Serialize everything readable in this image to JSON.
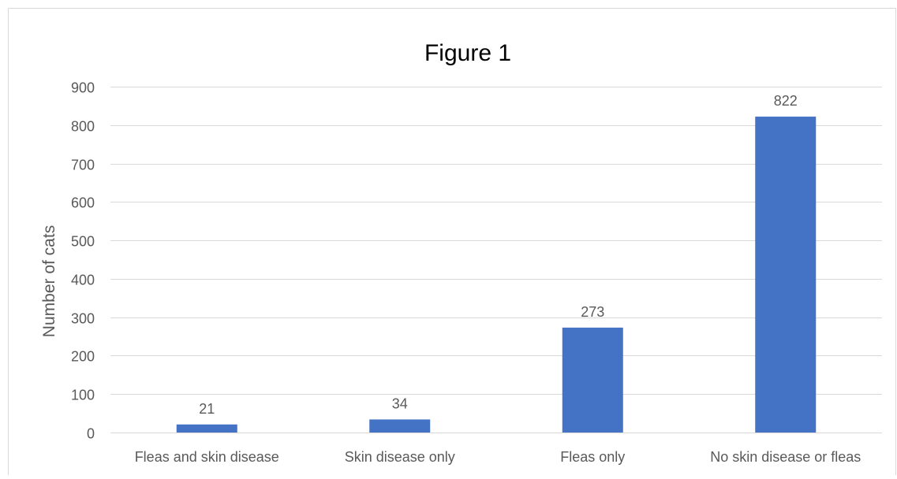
{
  "chart_data": {
    "type": "bar",
    "title": "Figure 1",
    "xlabel": "",
    "ylabel": "Number of cats",
    "categories": [
      "Fleas and skin disease",
      "Skin disease only",
      "Fleas only",
      "No skin disease or fleas"
    ],
    "values": [
      21,
      34,
      273,
      822
    ],
    "data_labels": [
      "21",
      "34",
      "273",
      "822"
    ],
    "ylim": [
      0,
      900
    ],
    "yticks": [
      0,
      100,
      200,
      300,
      400,
      500,
      600,
      700,
      800,
      900
    ],
    "ytick_labels": [
      "0",
      "100",
      "200",
      "300",
      "400",
      "500",
      "600",
      "700",
      "800",
      "900"
    ],
    "grid": true,
    "legend": "none",
    "colors": {
      "bar": "#4472C4",
      "grid": "#D9D9D9",
      "text": "#595959",
      "title": "#000000",
      "border": "#D9D9D9"
    }
  }
}
